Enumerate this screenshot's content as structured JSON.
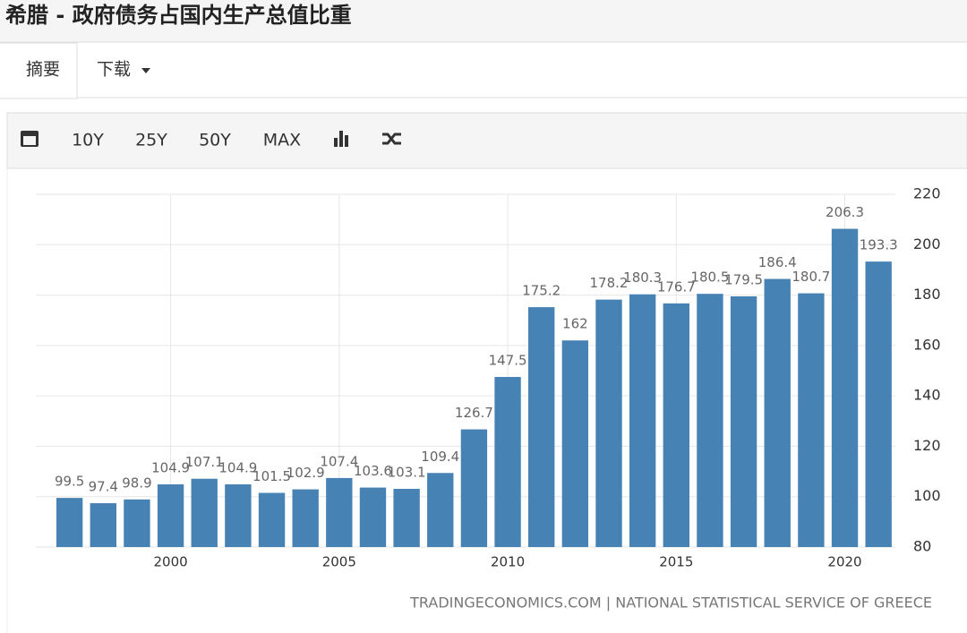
{
  "header": {
    "title": "希腊 - 政府债务占国内生产总值比重"
  },
  "tabs": [
    "摘要",
    "下载"
  ],
  "toolbar": [
    "10Y",
    "25Y",
    "50Y",
    "MAX"
  ],
  "chart_data": {
    "type": "bar",
    "x": [
      1997,
      1998,
      1999,
      2000,
      2001,
      2002,
      2003,
      2004,
      2005,
      2006,
      2007,
      2008,
      2009,
      2010,
      2011,
      2012,
      2013,
      2014,
      2015,
      2016,
      2017,
      2018,
      2019,
      2020,
      2021
    ],
    "values": [
      99.5,
      97.4,
      98.9,
      104.9,
      107.1,
      104.9,
      101.5,
      102.9,
      107.4,
      103.6,
      103.1,
      109.4,
      126.7,
      147.5,
      175.2,
      162,
      178.2,
      180.3,
      176.7,
      180.5,
      179.5,
      186.4,
      180.7,
      206.3,
      193.3
    ],
    "color": "#4682b4",
    "xlim": [
      1996,
      2021.5
    ],
    "xticks": [
      2000,
      2005,
      2010,
      2015,
      2020
    ],
    "ylim": [
      80,
      220
    ],
    "yticks": [
      80,
      100,
      120,
      140,
      160,
      180,
      200,
      220
    ],
    "grid": true,
    "source": "TRADINGECONOMICS.COM | NATIONAL STATISTICAL SERVICE OF GREECE"
  }
}
